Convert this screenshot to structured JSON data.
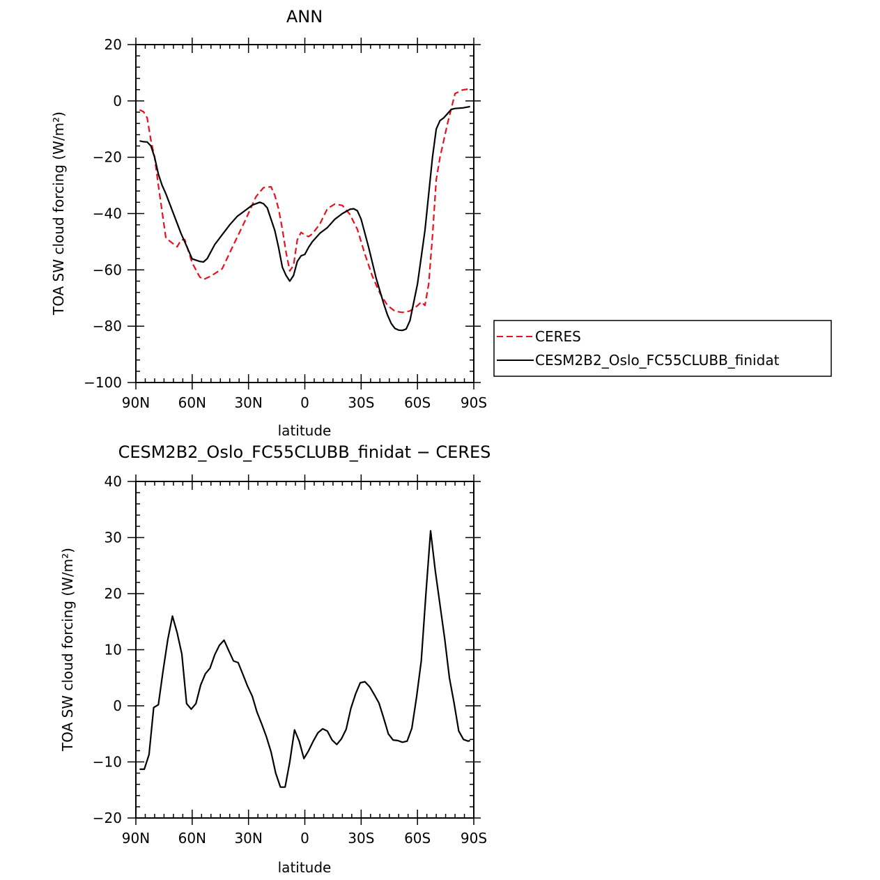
{
  "chart_data": [
    {
      "type": "line",
      "title": "ANN",
      "xlabel": "latitude",
      "ylabel": "TOA SW cloud forcing (W/m²)",
      "xlim": [
        -90,
        90
      ],
      "ylim": [
        -100,
        20
      ],
      "x_ticks": [
        -90,
        -60,
        -30,
        0,
        30,
        60,
        90
      ],
      "x_tick_labels": [
        "90N",
        "60N",
        "30N",
        "0",
        "30S",
        "60S",
        "90S"
      ],
      "y_ticks": [
        -100,
        -80,
        -60,
        -40,
        -20,
        0,
        20
      ],
      "y_tick_labels": [
        "−100",
        "−80",
        "−60",
        "−40",
        "−20",
        "0",
        "20"
      ],
      "legend_position": "right",
      "series": [
        {
          "name": "CERES",
          "color": "#e8101c",
          "dash": "dashed",
          "x": [
            -88,
            -86,
            -84,
            -82,
            -80,
            -78,
            -74,
            -68,
            -66,
            -64,
            -60,
            -56,
            -54,
            -50,
            -44,
            -38,
            -32,
            -26,
            -22,
            -18,
            -16,
            -14,
            -12,
            -10,
            -8,
            -6,
            -4,
            -2,
            0,
            2,
            4,
            8,
            12,
            16,
            20,
            24,
            28,
            32,
            36,
            40,
            44,
            48,
            52,
            56,
            60,
            62,
            64,
            66,
            68,
            70,
            72,
            76,
            80,
            84,
            88
          ],
          "y": [
            -3.2,
            -3.8,
            -6,
            -14,
            -20,
            -30,
            -48.7,
            -51.8,
            -49.4,
            -49.2,
            -57.5,
            -62.5,
            -63.4,
            -62.2,
            -59.6,
            -51.1,
            -42.8,
            -34,
            -30.8,
            -30.5,
            -33.5,
            -38.3,
            -45.5,
            -53.8,
            -60.4,
            -58.4,
            -49.3,
            -46.7,
            -47.6,
            -48.2,
            -47.2,
            -43.7,
            -38.3,
            -36.6,
            -37.1,
            -40.3,
            -45.6,
            -54.4,
            -62.3,
            -68.3,
            -72.6,
            -74.7,
            -75.1,
            -74.6,
            -72.7,
            -71.4,
            -72.6,
            -65,
            -48,
            -28,
            -20,
            -8,
            2.6,
            3.9,
            4.3
          ]
        },
        {
          "name": "CESM2B2_Oslo_FC55CLUBB_finidat",
          "color": "#000000",
          "dash": "solid",
          "x": [
            -88,
            -86,
            -84,
            -82,
            -80,
            -78,
            -76,
            -74,
            -70,
            -66,
            -64,
            -60,
            -56,
            -54,
            -52,
            -48,
            -44,
            -40,
            -36,
            -32,
            -28,
            -24,
            -22,
            -20,
            -18,
            -16,
            -14,
            -12,
            -10,
            -8,
            -6,
            -4,
            -2,
            0,
            2,
            4,
            8,
            12,
            16,
            20,
            24,
            26,
            28,
            30,
            34,
            38,
            42,
            44,
            46,
            48,
            50,
            52,
            54,
            56,
            60,
            64,
            68,
            70,
            72,
            74,
            78,
            80,
            84,
            88
          ],
          "y": [
            -14.2,
            -14.5,
            -14.6,
            -16,
            -20,
            -26,
            -30,
            -33,
            -40,
            -47,
            -50,
            -56.1,
            -57,
            -57.2,
            -56,
            -51,
            -47.5,
            -44,
            -41,
            -39,
            -37,
            -36,
            -36.5,
            -38,
            -42,
            -46,
            -52,
            -59,
            -62,
            -64,
            -62,
            -57,
            -55,
            -54.5,
            -52,
            -50,
            -47,
            -45,
            -42,
            -40,
            -38.5,
            -38.3,
            -39,
            -42,
            -52,
            -63,
            -72,
            -76,
            -79,
            -80.8,
            -81.4,
            -81.5,
            -81,
            -78,
            -65,
            -46,
            -20,
            -10,
            -7,
            -6,
            -3,
            -2.7,
            -2.5,
            -2
          ]
        }
      ]
    },
    {
      "type": "line",
      "title": "CESM2B2_Oslo_FC55CLUBB_finidat − CERES",
      "xlabel": "latitude",
      "ylabel": "TOA SW cloud forcing (W/m²)",
      "xlim": [
        -90,
        90
      ],
      "ylim": [
        -20,
        40
      ],
      "x_ticks": [
        -90,
        -60,
        -30,
        0,
        30,
        60,
        90
      ],
      "x_tick_labels": [
        "90N",
        "60N",
        "30N",
        "0",
        "30S",
        "60S",
        "90S"
      ],
      "y_ticks": [
        -20,
        -10,
        0,
        10,
        20,
        30,
        40
      ],
      "y_tick_labels": [
        "−20",
        "−10",
        "0",
        "10",
        "20",
        "30",
        "40"
      ],
      "series": [
        {
          "color": "#000000",
          "dash": "solid",
          "x": [
            -88,
            -85.5,
            -83,
            -80.5,
            -78,
            -75.5,
            -73,
            -70.5,
            -68,
            -65.5,
            -63,
            -60.5,
            -58,
            -55.5,
            -53,
            -50.5,
            -48,
            -45.5,
            -43,
            -40.5,
            -38,
            -35.5,
            -33,
            -30.5,
            -28,
            -25.5,
            -23,
            -20.5,
            -18,
            -15.5,
            -13,
            -10.5,
            -8,
            -5.5,
            -3,
            -0.5,
            2,
            4.5,
            7,
            9.5,
            12,
            14.5,
            17,
            19.5,
            22,
            24.5,
            27,
            29.5,
            32,
            34.5,
            37,
            39.5,
            42,
            44.5,
            47,
            49.5,
            52,
            54.5,
            57,
            59.5,
            62,
            64.5,
            67,
            69.5,
            72,
            74.5,
            77,
            79.5,
            82,
            84.5,
            87,
            88
          ],
          "y": [
            -11.3,
            -11.3,
            -8.7,
            -0.3,
            0.2,
            6.3,
            11.8,
            16,
            13,
            9.2,
            0.4,
            -0.6,
            0.4,
            3.7,
            5.7,
            6.7,
            9.1,
            10.8,
            11.7,
            9.8,
            8,
            7.7,
            5.6,
            3.5,
            1.7,
            -1.1,
            -3.2,
            -5.5,
            -8.2,
            -12,
            -14.5,
            -14.5,
            -10,
            -4.3,
            -6.3,
            -9.4,
            -8,
            -6.3,
            -4.8,
            -4.1,
            -4.5,
            -6.1,
            -6.9,
            -5.9,
            -4.2,
            -0.5,
            2.1,
            4.1,
            4.3,
            3.4,
            2,
            0.5,
            -2.2,
            -5,
            -6.1,
            -6.2,
            -6.5,
            -6.3,
            -4,
            1.5,
            8,
            20,
            31.2,
            24,
            18,
            12,
            5,
            0.5,
            -4.5,
            -6,
            -6.3,
            -6.2
          ]
        }
      ]
    }
  ]
}
